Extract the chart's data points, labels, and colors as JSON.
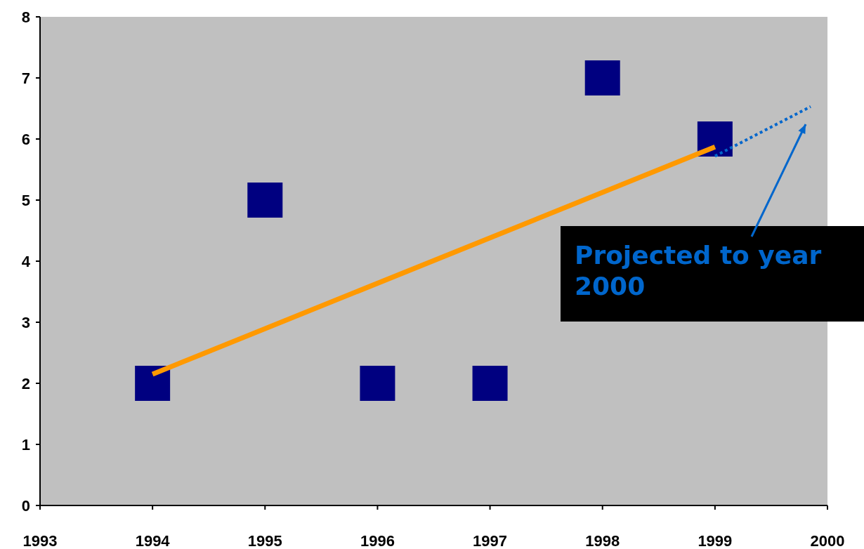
{
  "chart_data": {
    "type": "scatter",
    "xlim": [
      1993,
      2000
    ],
    "xticks": [
      1993,
      1994,
      1995,
      1996,
      1997,
      1998,
      1999,
      2000
    ],
    "ylim": [
      0,
      8
    ],
    "yticks": [
      0,
      1,
      2,
      3,
      4,
      5,
      6,
      7,
      8
    ],
    "grid": false,
    "series": [
      {
        "x": [
          1994,
          1995,
          1996,
          1997,
          1998,
          1999
        ],
        "values": [
          2,
          5,
          2,
          2,
          7,
          6
        ],
        "color": "#000080",
        "marker": "square"
      },
      {
        "type": "line",
        "x": [
          1994,
          1999
        ],
        "values": [
          2.15,
          5.87
        ],
        "color": "#ff9900",
        "line_style": "solid"
      },
      {
        "type": "line",
        "x": [
          1999,
          1999.85
        ],
        "values": [
          5.72,
          6.53
        ],
        "color": "#0066cc",
        "line_style": "dotted"
      }
    ],
    "annotations": [
      "Projected to year 2000"
    ]
  }
}
